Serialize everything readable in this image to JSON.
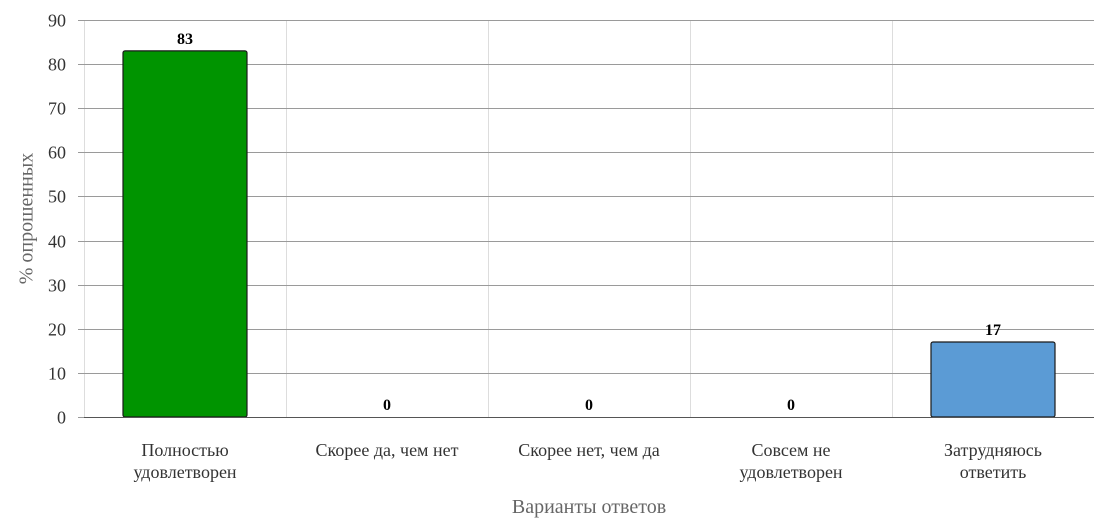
{
  "chart_data": {
    "type": "bar",
    "title": "",
    "xlabel": "Варианты ответов",
    "ylabel": "% опрошенных",
    "ylim": [
      0,
      90
    ],
    "yticks": [
      0,
      10,
      20,
      30,
      40,
      50,
      60,
      70,
      80,
      90
    ],
    "grid": true,
    "categories": [
      [
        "Полностью",
        "удовлетворен"
      ],
      [
        "Скорее да, чем нет"
      ],
      [
        "Скорее нет, чем да"
      ],
      [
        "Совсем не",
        "удовлетворен"
      ],
      [
        "Затрудняюсь",
        "ответить"
      ]
    ],
    "values": [
      83,
      0,
      0,
      0,
      17
    ],
    "bar_colors": [
      "#009400",
      "#5b9bd5",
      "#5b9bd5",
      "#5b9bd5",
      "#5b9bd5"
    ],
    "bar_border_color": "#1a1a1a"
  }
}
